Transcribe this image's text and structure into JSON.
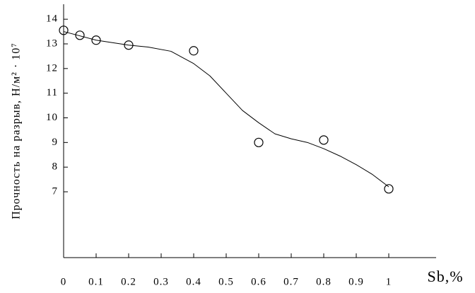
{
  "chart_data": {
    "type": "scatter",
    "x_label": "Sb,%",
    "y_label": "Прочность на разрыв, Н/м² · 10⁷",
    "xlim": [
      0,
      1.14
    ],
    "ylim": [
      4.33,
      14.55
    ],
    "xticks": [
      0,
      0.1,
      0.2,
      0.3,
      0.4,
      0.5,
      0.6,
      0.7,
      0.8,
      0.9,
      1
    ],
    "yticks": [
      7,
      8,
      9,
      10,
      11,
      12,
      13,
      14
    ],
    "grid": false,
    "series": [
      {
        "style": "marker",
        "color": "#000000",
        "x": [
          0,
          0.05,
          0.1,
          0.2,
          0.4,
          0.6,
          0.8,
          1.0
        ],
        "values": [
          13.55,
          13.35,
          13.15,
          12.95,
          12.72,
          9.0,
          9.1,
          7.12
        ]
      },
      {
        "style": "line",
        "color": "#000000",
        "x": [
          0,
          0.1,
          0.2,
          0.26,
          0.33,
          0.4,
          0.45,
          0.5,
          0.55,
          0.6,
          0.65,
          0.7,
          0.75,
          0.8,
          0.85,
          0.9,
          0.95,
          1.0
        ],
        "values": [
          13.5,
          13.15,
          12.95,
          12.87,
          12.7,
          12.2,
          11.7,
          11.0,
          10.3,
          9.8,
          9.35,
          9.15,
          9.0,
          8.75,
          8.45,
          8.1,
          7.7,
          7.2
        ]
      }
    ]
  }
}
